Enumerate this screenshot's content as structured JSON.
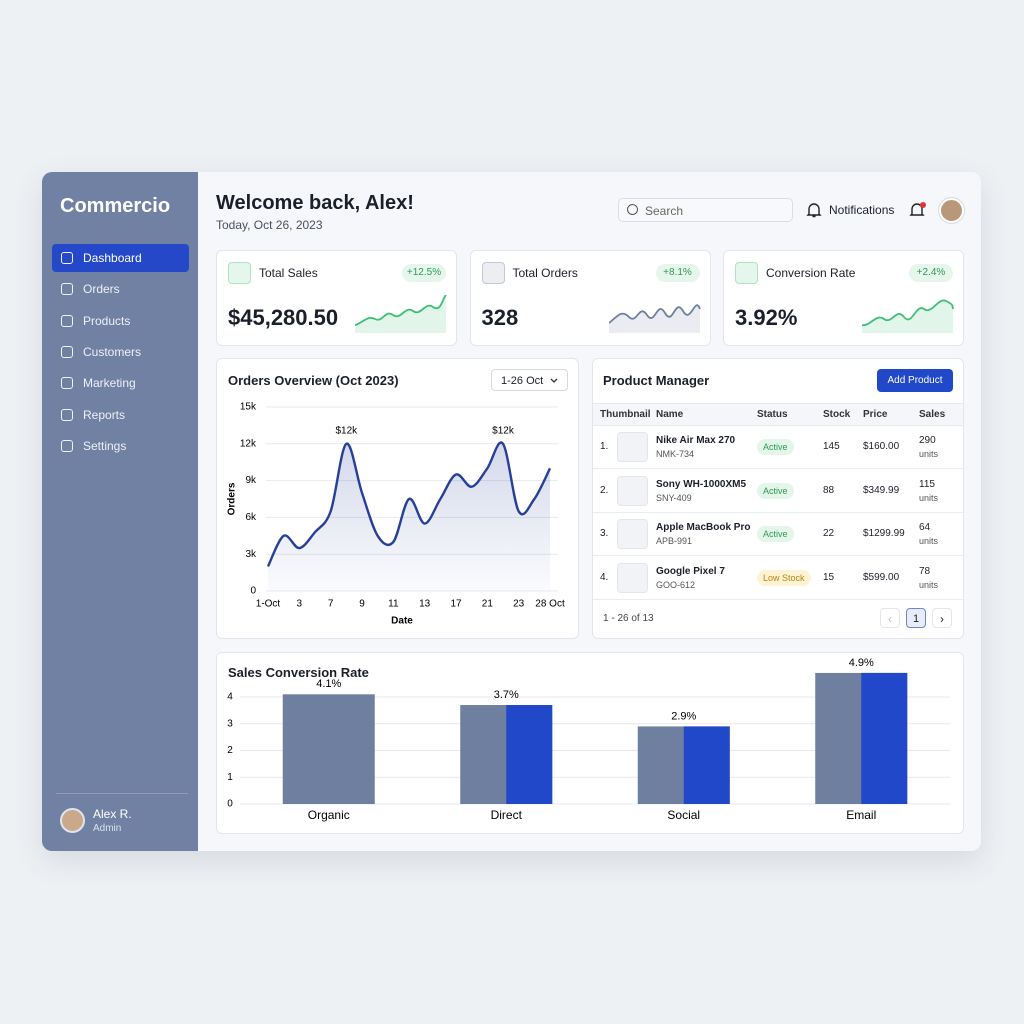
{
  "sidebar": {
    "brand": "Commercio",
    "nav": [
      "Dashboard",
      "Orders",
      "Products",
      "Customers",
      "Marketing",
      "Reports",
      "Settings"
    ],
    "active_nav": 0,
    "user": {
      "name": "Alex R.",
      "role": "Admin"
    }
  },
  "header": {
    "title": "Welcome back, Alex!",
    "date": "Today, Oct 26, 2023",
    "search": "Search",
    "notifications": "Notifications"
  },
  "kpis": [
    {
      "label": "Total Sales",
      "value": "$45,280.50",
      "change": "+12.5%",
      "color": "#3cbf74"
    },
    {
      "label": "Total Orders",
      "value": "328",
      "change": "+8.1%",
      "color": "#6f7fa0"
    },
    {
      "label": "Conversion Rate",
      "value": "3.92%",
      "change": "+2.4%",
      "color": "#3cbf74"
    }
  ],
  "orders_card": {
    "range": "1-26 Oct"
  },
  "product_manager": {
    "title": "Product Manager",
    "button": "Add Product",
    "columns": [
      "Thumbnail",
      "Name",
      "Status",
      "Stock",
      "Price",
      "Sales"
    ],
    "rows": [
      {
        "index": "1.",
        "name": "Nike Air Max 270",
        "sku": "NMK-734",
        "status": "Active",
        "stock": 145,
        "price": "$160.00",
        "sales": 290,
        "unit": "units"
      },
      {
        "index": "2.",
        "name": "Sony WH-1000XM5",
        "sku": "SNY-409",
        "status": "Active",
        "stock": 88,
        "price": "$349.99",
        "sales": 115,
        "unit": "units"
      },
      {
        "index": "3.",
        "name": "Apple MacBook Pro",
        "sku": "APB-991",
        "status": "Active",
        "stock": 22,
        "price": "$1299.99",
        "sales": 64,
        "unit": "units"
      },
      {
        "index": "4.",
        "name": "Google Pixel 7",
        "sku": "GOO-612",
        "status": "Low Stock",
        "stock": 15,
        "price": "$599.00",
        "sales": 78,
        "unit": "units"
      }
    ],
    "footer": "1 - 26 of 13",
    "page": 1
  },
  "chart_data": [
    {
      "type": "line",
      "title": "Orders Overview (Oct 2023)",
      "xlabel": "Date",
      "ylabel": "Orders",
      "color": "#26409a",
      "categories": [
        "1-Oct",
        null,
        "3",
        null,
        "7",
        null,
        "9",
        null,
        "11",
        null,
        "13",
        null,
        "17",
        null,
        "21",
        null,
        "23",
        null,
        "28 Oct"
      ],
      "values": [
        2000,
        4500,
        3500,
        4800,
        6500,
        12000,
        8000,
        4500,
        4000,
        7500,
        5500,
        7500,
        9500,
        8500,
        10000,
        12000,
        6500,
        7500,
        10000
      ],
      "value_labels": [
        null,
        null,
        null,
        null,
        null,
        "$12k",
        null,
        null,
        null,
        null,
        null,
        null,
        null,
        null,
        null,
        "$12k",
        null,
        null,
        null
      ],
      "ylim": [
        0,
        15000
      ],
      "yticks": [
        0,
        {
          "value": 3000,
          "label": "3k"
        },
        {
          "value": 6000,
          "label": "6k"
        },
        {
          "value": 9000,
          "label": "9k"
        },
        {
          "value": 12000,
          "label": "12k"
        },
        {
          "value": 15000,
          "label": "15k"
        }
      ],
      "grid": true
    },
    {
      "type": "bar",
      "title": "Sales Conversion Rate",
      "categories": [
        "Organic",
        "Direct",
        "Social",
        "Email"
      ],
      "values": [
        4.1,
        3.7,
        2.9,
        4.9
      ],
      "value_labels": [
        "4.1%",
        "3.7%",
        "2.9%",
        "4.9%"
      ],
      "colors": [
        "#6f7fa0",
        "#2148c8"
      ],
      "accent": [
        false,
        true,
        true,
        true
      ],
      "ylim": [
        0,
        5
      ],
      "yticks": [
        0,
        1,
        2,
        3,
        4
      ],
      "grid": true
    }
  ]
}
